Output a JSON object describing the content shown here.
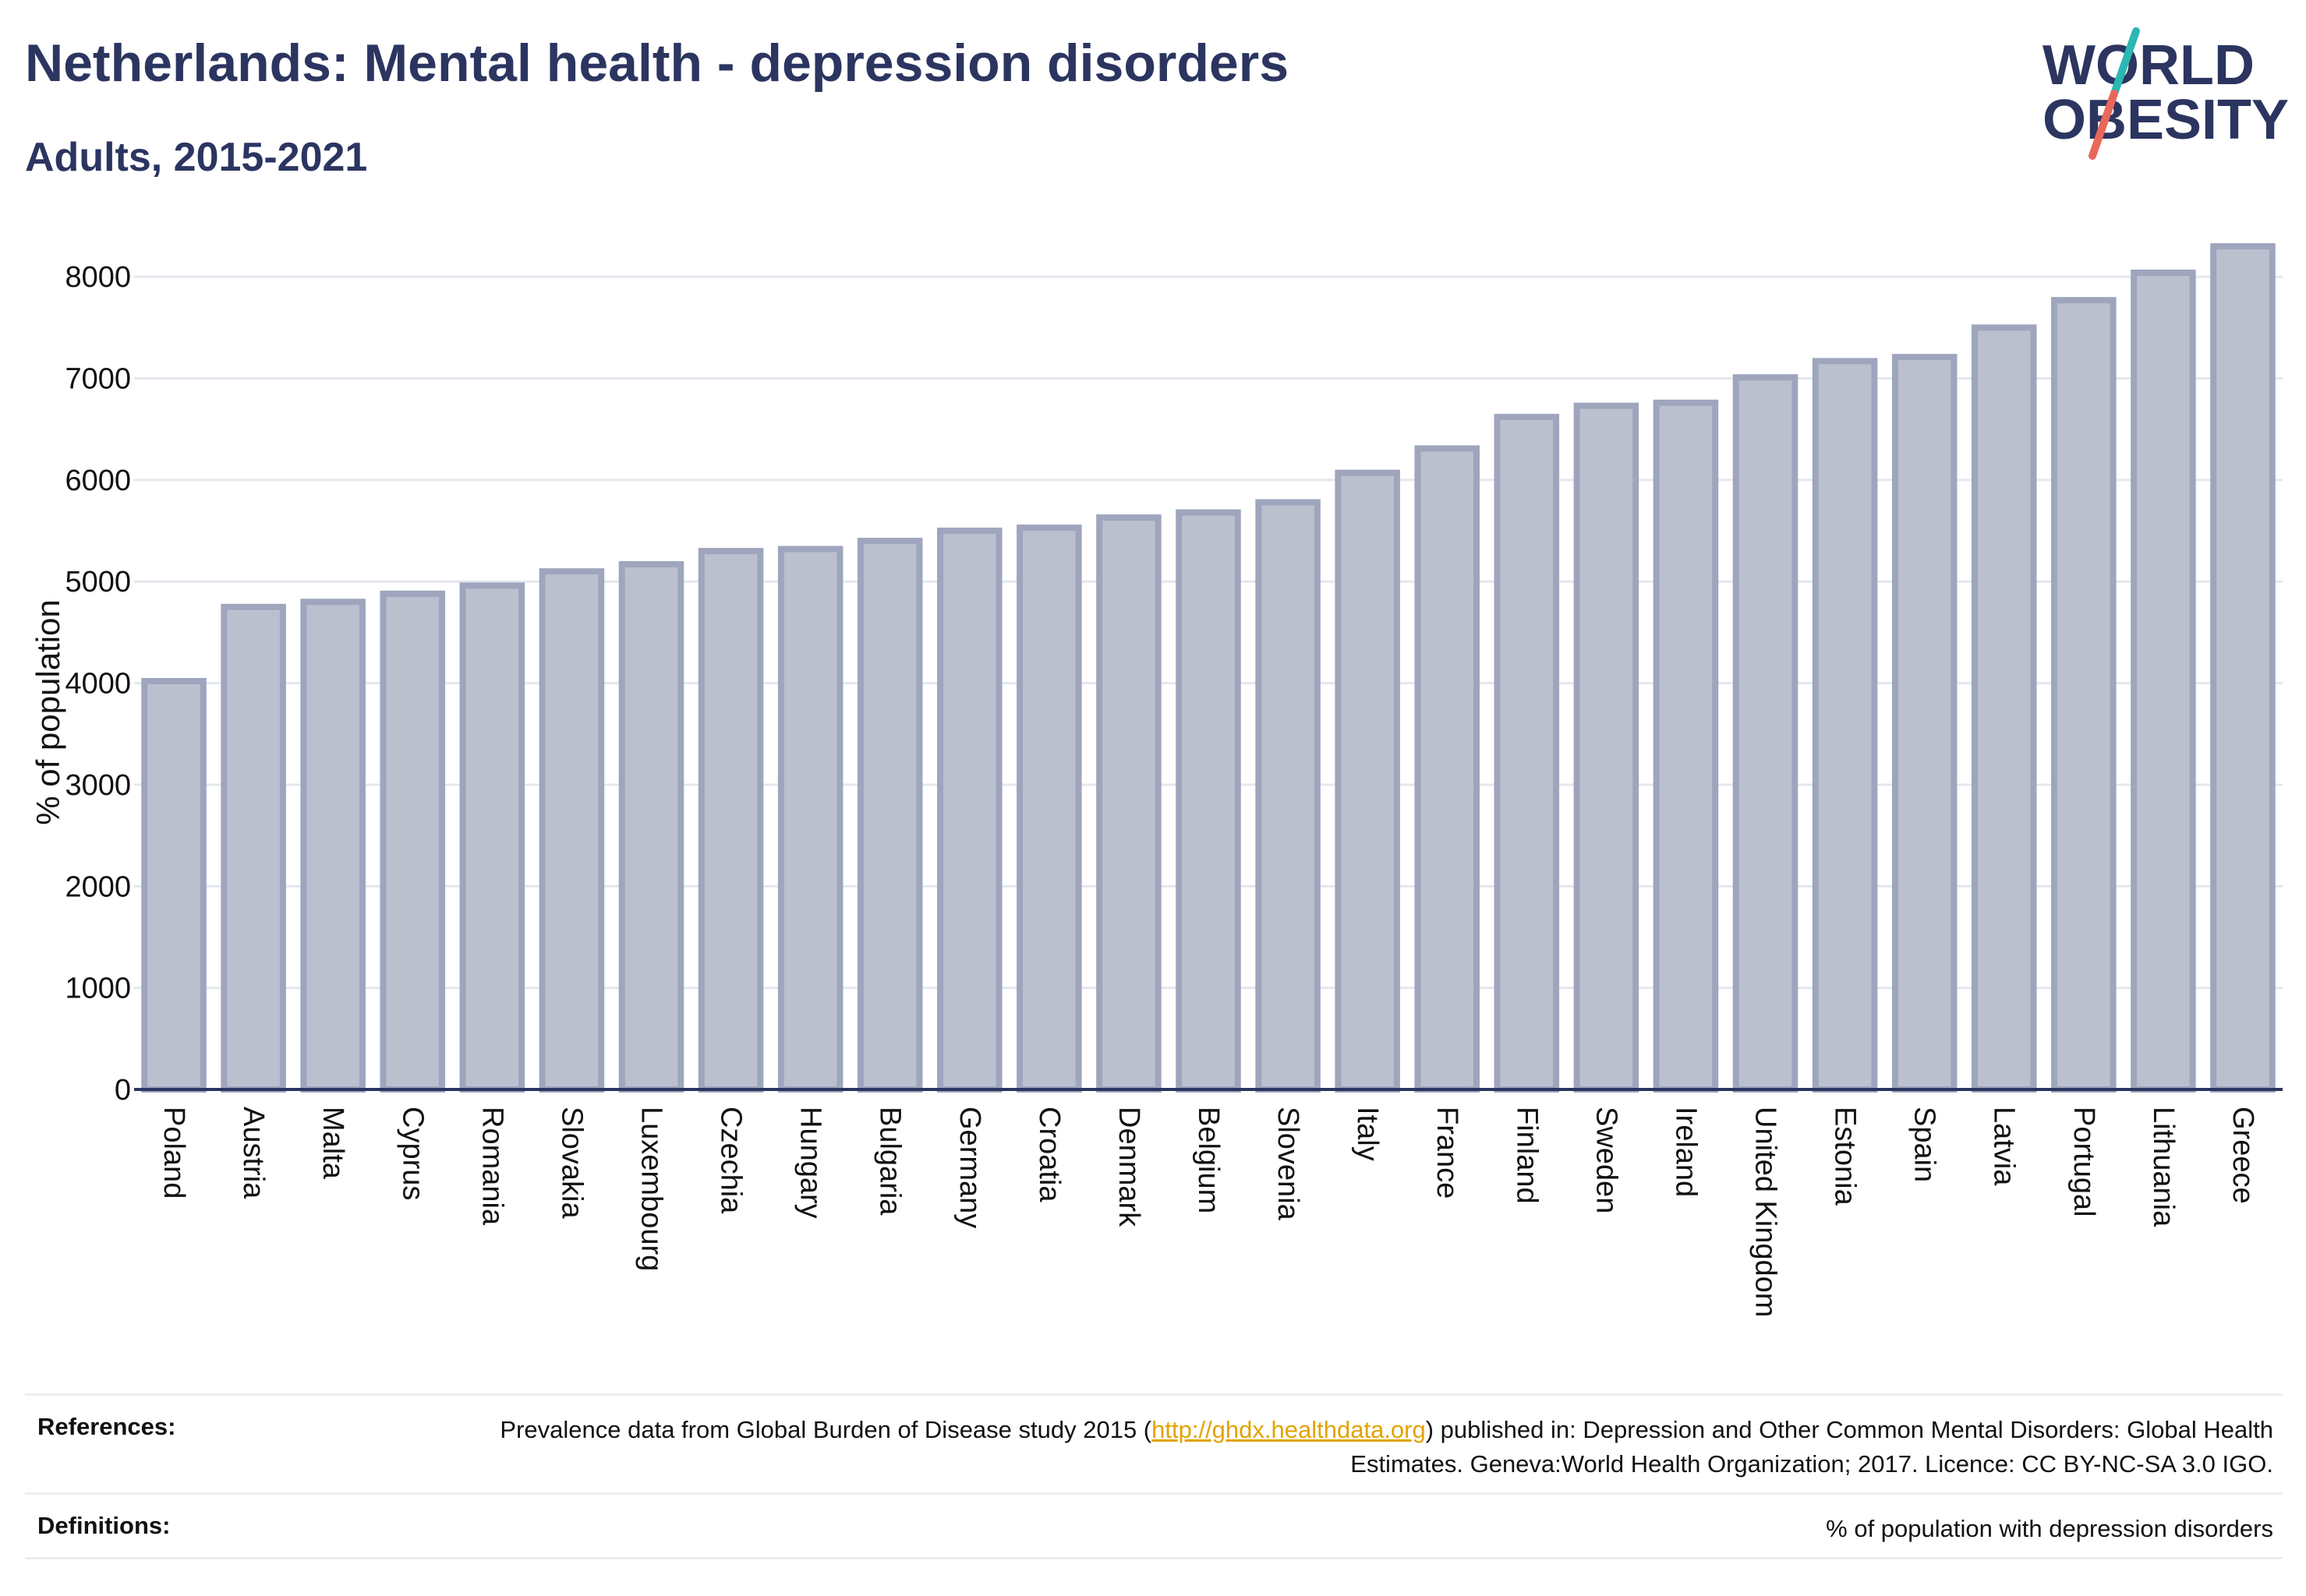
{
  "header": {
    "title": "Netherlands: Mental health - depression disorders",
    "subtitle": "Adults, 2015-2021"
  },
  "logo": {
    "line1": "WORLD",
    "line2": "OBESITY",
    "accent_teal": "#2bb7b3",
    "accent_coral": "#e8685a",
    "text_color": "#2b3560"
  },
  "chart_data": {
    "type": "bar",
    "categories": [
      "Poland",
      "Austria",
      "Malta",
      "Cyprus",
      "Romania",
      "Slovakia",
      "Luxembourg",
      "Czechia",
      "Hungary",
      "Bulgaria",
      "Germany",
      "Croatia",
      "Denmark",
      "Belgium",
      "Slovenia",
      "Italy",
      "France",
      "Finland",
      "Sweden",
      "Ireland",
      "United Kingdom",
      "Estonia",
      "Spain",
      "Latvia",
      "Portugal",
      "Lithuania",
      "Greece"
    ],
    "values": [
      4020,
      4750,
      4800,
      4880,
      4960,
      5100,
      5170,
      5300,
      5320,
      5400,
      5500,
      5530,
      5630,
      5680,
      5780,
      6070,
      6310,
      6620,
      6730,
      6760,
      7010,
      7170,
      7210,
      7500,
      7770,
      8040,
      8300
    ],
    "ylabel": "% of population",
    "xlabel": "",
    "ylim": [
      0,
      8500
    ],
    "yticks": [
      0,
      1000,
      2000,
      3000,
      4000,
      5000,
      6000,
      7000,
      8000
    ],
    "grid": true,
    "bar_fill": "#bcc0ce",
    "bar_stroke": "#9ea5bd"
  },
  "footer": {
    "references_label": "References:",
    "references_pre": "Prevalence data from Global Burden of Disease study 2015 (",
    "references_link": "http://ghdx.healthdata.org",
    "references_post": ") published in: Depression and Other Common Mental Disorders: Global Health Estimates. Geneva:World Health Organization; 2017. Licence: CC BY-NC-SA 3.0 IGO.",
    "definitions_label": "Definitions:",
    "definitions_text": "% of population with depression disorders"
  }
}
